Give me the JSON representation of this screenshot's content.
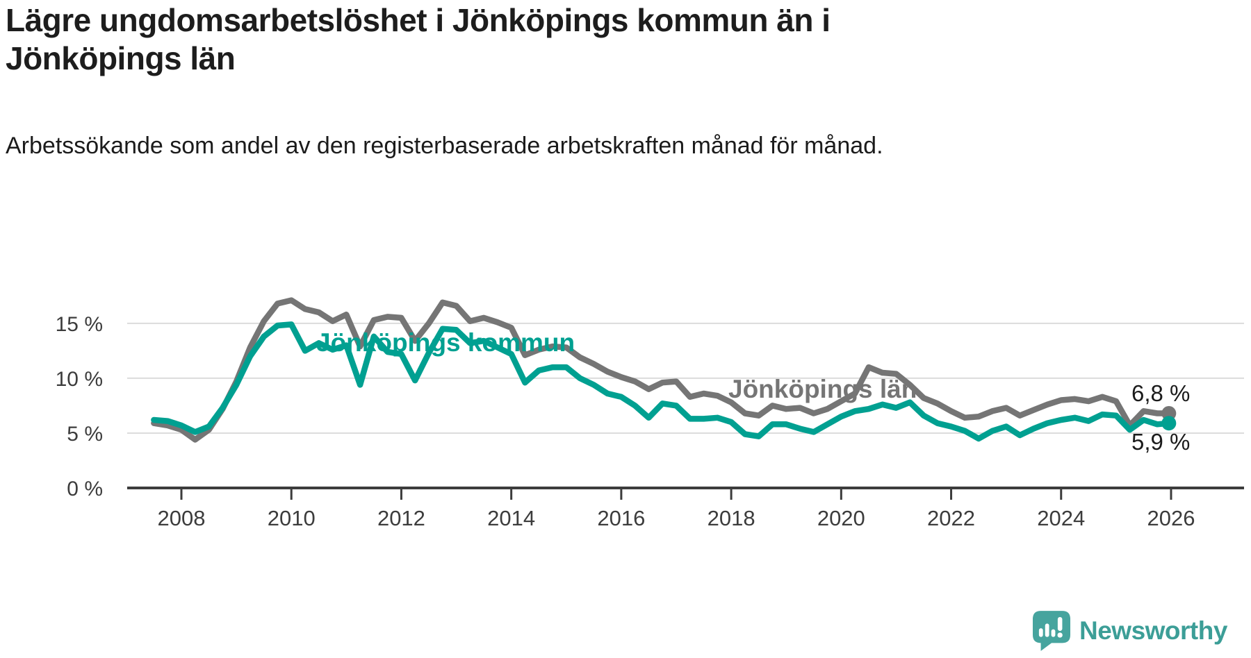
{
  "title": "Lägre ungdomsarbetslöshet i Jönköpings kommun än i Jönköpings län",
  "subtitle": "Arbetssökande som andel av den registerbaserade arbetskraften månad för månad.",
  "branding": {
    "logo_text": "Newsworthy",
    "logo_icon": "bar-chart-speech-bubble-icon",
    "logo_color": "#46a49e",
    "logo_text_color": "#3c9e97"
  },
  "colors": {
    "kommun_line": "#00a091",
    "lan_line": "#757575",
    "gridline": "#dcdcdc",
    "axis": "#3c3c3c",
    "label_text": "#1b1b1b"
  },
  "chart_data": {
    "type": "line",
    "x_unit": "decimal_year_monthly_series",
    "grid": "horizontal",
    "xlim": [
      2007.35,
      2026.35
    ],
    "ylim": [
      0,
      18.5
    ],
    "x_tick_labels": [
      "2008",
      "2010",
      "2012",
      "2014",
      "2016",
      "2018",
      "2020",
      "2022",
      "2024",
      "2026"
    ],
    "y_tick_labels": [
      "0 %",
      "5 %",
      "10 %",
      "15 %"
    ],
    "x": [
      2007.5,
      2007.75,
      2008.0,
      2008.25,
      2008.5,
      2008.75,
      2009.0,
      2009.25,
      2009.5,
      2009.75,
      2010.0,
      2010.25,
      2010.5,
      2010.75,
      2011.0,
      2011.25,
      2011.5,
      2011.75,
      2012.0,
      2012.25,
      2012.5,
      2012.75,
      2013.0,
      2013.25,
      2013.5,
      2013.75,
      2014.0,
      2014.25,
      2014.5,
      2014.75,
      2015.0,
      2015.25,
      2015.5,
      2015.75,
      2016.0,
      2016.25,
      2016.5,
      2016.75,
      2017.0,
      2017.25,
      2017.5,
      2017.75,
      2018.0,
      2018.25,
      2018.5,
      2018.75,
      2019.0,
      2019.25,
      2019.5,
      2019.75,
      2020.0,
      2020.25,
      2020.5,
      2020.75,
      2021.0,
      2021.25,
      2021.5,
      2021.75,
      2022.0,
      2022.25,
      2022.5,
      2022.75,
      2023.0,
      2023.25,
      2023.5,
      2023.75,
      2024.0,
      2024.25,
      2024.5,
      2024.75,
      2025.0,
      2025.25,
      2025.5,
      2025.75,
      2025.96
    ],
    "series": [
      {
        "name": "Jönköpings kommun",
        "color": "#00a091",
        "end_label": "5,9 %",
        "end_value": 5.9,
        "values": [
          6.2,
          6.1,
          5.7,
          5.1,
          5.6,
          7.3,
          9.4,
          12.0,
          13.8,
          14.8,
          14.9,
          12.5,
          13.2,
          12.6,
          13.0,
          9.4,
          13.8,
          12.4,
          12.2,
          9.8,
          12.3,
          14.5,
          14.4,
          13.2,
          13.4,
          12.8,
          12.2,
          9.6,
          10.7,
          11.0,
          11.0,
          10.0,
          9.4,
          8.6,
          8.3,
          7.5,
          6.4,
          7.7,
          7.5,
          6.3,
          6.3,
          6.4,
          6.0,
          4.9,
          4.7,
          5.8,
          5.8,
          5.4,
          5.1,
          5.8,
          6.5,
          7.0,
          7.2,
          7.6,
          7.3,
          7.8,
          6.6,
          5.9,
          5.6,
          5.2,
          4.5,
          5.2,
          5.6,
          4.8,
          5.4,
          5.9,
          6.2,
          6.4,
          6.1,
          6.7,
          6.6,
          5.3,
          6.2,
          5.8,
          5.9
        ]
      },
      {
        "name": "Jönköpings län",
        "color": "#757575",
        "end_label": "6,8 %",
        "end_value": 6.8,
        "values": [
          5.9,
          5.7,
          5.3,
          4.4,
          5.3,
          7.2,
          9.7,
          12.8,
          15.2,
          16.8,
          17.1,
          16.3,
          16.0,
          15.2,
          15.8,
          12.9,
          15.3,
          15.6,
          15.5,
          13.4,
          15.0,
          16.9,
          16.6,
          15.2,
          15.5,
          15.1,
          14.6,
          12.1,
          12.6,
          12.9,
          12.8,
          11.9,
          11.3,
          10.6,
          10.1,
          9.7,
          9.0,
          9.6,
          9.7,
          8.3,
          8.6,
          8.4,
          7.8,
          6.8,
          6.6,
          7.5,
          7.2,
          7.3,
          6.8,
          7.2,
          7.9,
          8.6,
          11.0,
          10.5,
          10.4,
          9.4,
          8.2,
          7.7,
          7.0,
          6.4,
          6.5,
          7.0,
          7.3,
          6.6,
          7.1,
          7.6,
          8.0,
          8.1,
          7.9,
          8.3,
          7.9,
          5.7,
          7.0,
          6.8,
          6.8
        ]
      }
    ]
  }
}
